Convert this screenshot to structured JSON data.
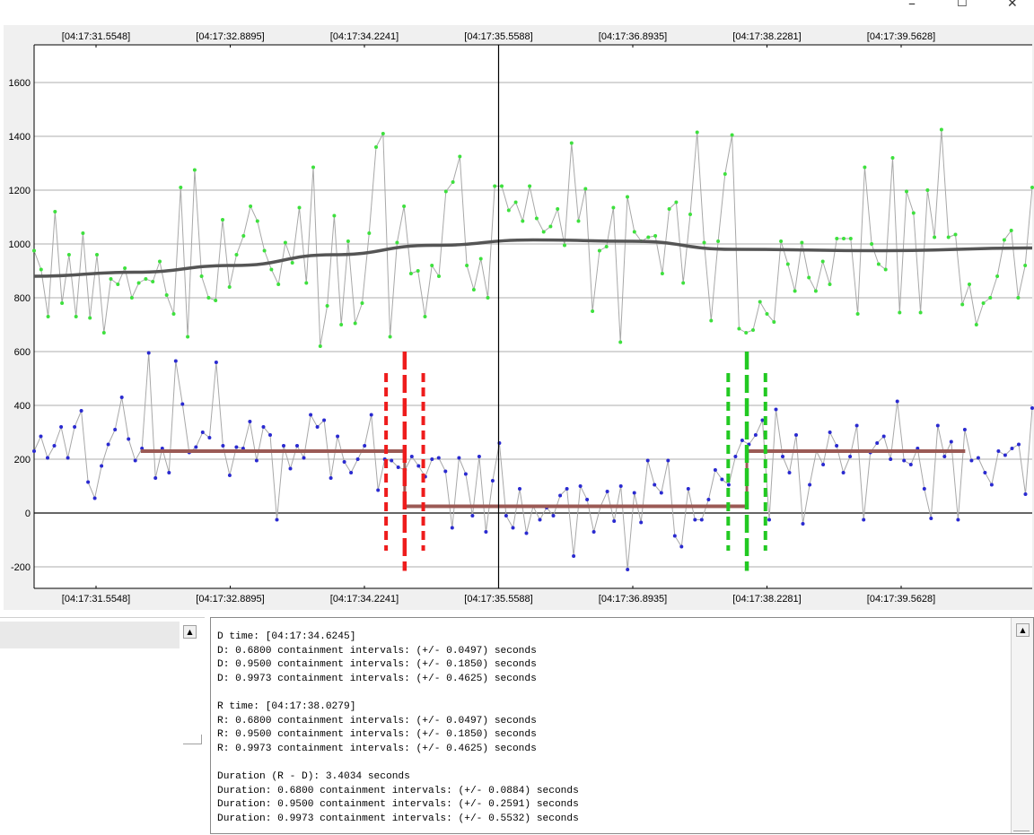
{
  "window": {
    "minimize_glyph": "–",
    "maximize_glyph": "☐",
    "close_glyph": "✕"
  },
  "chart_data": {
    "type": "line",
    "x_tick_labels": [
      "[04:17:31.5548]",
      "[04:17:32.8895]",
      "[04:17:34.2241]",
      "[04:17:35.5588]",
      "[04:17:36.8935]",
      "[04:17:38.2281]",
      "[04:17:39.5628]"
    ],
    "y_ticks": [
      -200,
      0,
      200,
      400,
      600,
      800,
      1000,
      1200,
      1400,
      1600
    ],
    "ylim": [
      -280,
      1740
    ],
    "cursor_time": "04:17:35.5588",
    "grid": true,
    "series": [
      {
        "marker_color": "#3ee03e",
        "values": [
          975,
          905,
          730,
          1120,
          780,
          960,
          730,
          1040,
          725,
          960,
          670,
          870,
          850,
          910,
          800,
          855,
          870,
          860,
          935,
          810,
          740,
          1210,
          655,
          1275,
          880,
          800,
          790,
          1090,
          840,
          960,
          1030,
          1140,
          1085,
          975,
          905,
          850,
          1005,
          930,
          1135,
          855,
          1285,
          620,
          770,
          1105,
          700,
          1010,
          705,
          780,
          1040,
          1360,
          1410,
          655,
          1005,
          1140,
          890,
          900,
          730,
          920,
          880,
          1195,
          1230,
          1325,
          920,
          830,
          945,
          800,
          1215,
          1215,
          1125,
          1155,
          1085,
          1215,
          1095,
          1045,
          1065,
          1130,
          995,
          1375,
          1085,
          1205,
          750,
          975,
          990,
          1135,
          635,
          1175,
          1045,
          1010,
          1025,
          1030,
          890,
          1130,
          1155,
          855,
          1110,
          1415,
          1005,
          715,
          1010,
          1260,
          1405,
          685,
          670,
          680,
          785,
          740,
          710,
          1010,
          925,
          825,
          1005,
          875,
          825,
          935,
          850,
          1020,
          1020,
          1020,
          740,
          1285,
          1000,
          925,
          905,
          1320,
          745,
          1195,
          1115,
          745,
          1200,
          1025,
          1425,
          1025,
          1035,
          775,
          850,
          700,
          780,
          800,
          880,
          1015,
          1050,
          800,
          920,
          1210
        ]
      },
      {
        "marker_color": "#2a2ad0",
        "values": [
          230,
          285,
          205,
          250,
          320,
          205,
          320,
          380,
          115,
          55,
          175,
          255,
          310,
          430,
          275,
          195,
          240,
          595,
          130,
          240,
          150,
          565,
          405,
          225,
          245,
          300,
          280,
          560,
          250,
          140,
          245,
          240,
          340,
          195,
          320,
          290,
          -25,
          250,
          165,
          250,
          205,
          365,
          320,
          345,
          130,
          285,
          190,
          150,
          200,
          250,
          365,
          85,
          200,
          195,
          170,
          160,
          210,
          175,
          135,
          200,
          205,
          155,
          -55,
          205,
          145,
          -10,
          210,
          -70,
          120,
          260,
          -10,
          -55,
          90,
          -75,
          25,
          -25,
          20,
          -10,
          65,
          90,
          -160,
          100,
          50,
          -70,
          25,
          80,
          -30,
          100,
          -210,
          75,
          -35,
          195,
          105,
          75,
          195,
          -85,
          -125,
          90,
          -25,
          -25,
          50,
          160,
          125,
          105,
          210,
          270,
          255,
          290,
          345,
          -25,
          385,
          210,
          150,
          290,
          -40,
          105,
          230,
          180,
          300,
          250,
          150,
          210,
          325,
          -25,
          225,
          260,
          285,
          200,
          415,
          195,
          180,
          240,
          90,
          -20,
          325,
          210,
          265,
          -25,
          310,
          195,
          205,
          150,
          105,
          230,
          215,
          240,
          255,
          70,
          390
        ]
      }
    ],
    "moving_average": [
      {
        "t": 0.0,
        "v": 880
      },
      {
        "t": 0.1,
        "v": 895
      },
      {
        "t": 0.2,
        "v": 920
      },
      {
        "t": 0.3,
        "v": 960
      },
      {
        "t": 0.4,
        "v": 995
      },
      {
        "t": 0.5,
        "v": 1015
      },
      {
        "t": 0.6,
        "v": 1010
      },
      {
        "t": 0.7,
        "v": 980
      },
      {
        "t": 0.85,
        "v": 975
      },
      {
        "t": 1.0,
        "v": 985
      }
    ],
    "steps": [
      {
        "value": 230,
        "from": "04:17:32.0",
        "to": "04:17:34.6245"
      },
      {
        "value": 25,
        "from": "04:17:34.6245",
        "to": "04:17:38.0279"
      },
      {
        "value": 230,
        "from": "04:17:38.0279",
        "to": "04:17:40.2"
      }
    ],
    "d_event": {
      "time": "04:17:34.6245",
      "band": 0.185,
      "color": "#ee1c1c"
    },
    "r_event": {
      "time": "04:17:38.0279",
      "band": 0.185,
      "color": "#22c922"
    }
  },
  "left_pane": {
    "up_arrow": "▲"
  },
  "console": {
    "lines": [
      "D time: [04:17:34.6245]",
      "D: 0.6800 containment intervals: (+/- 0.0497) seconds",
      "D: 0.9500 containment intervals: (+/- 0.1850) seconds",
      "D: 0.9973 containment intervals: (+/- 0.4625) seconds",
      "",
      "R time: [04:17:38.0279]",
      "R: 0.6800 containment intervals: (+/- 0.0497) seconds",
      "R: 0.9500 containment intervals: (+/- 0.1850) seconds",
      "R: 0.9973 containment intervals: (+/- 0.4625) seconds",
      "",
      "Duration (R - D): 3.4034 seconds",
      "Duration: 0.6800 containment intervals: (+/- 0.0884) seconds",
      "Duration: 0.9500 containment intervals: (+/- 0.2591) seconds",
      "Duration: 0.9973 containment intervals: (+/- 0.5532) seconds"
    ],
    "up_arrow": "▲"
  }
}
